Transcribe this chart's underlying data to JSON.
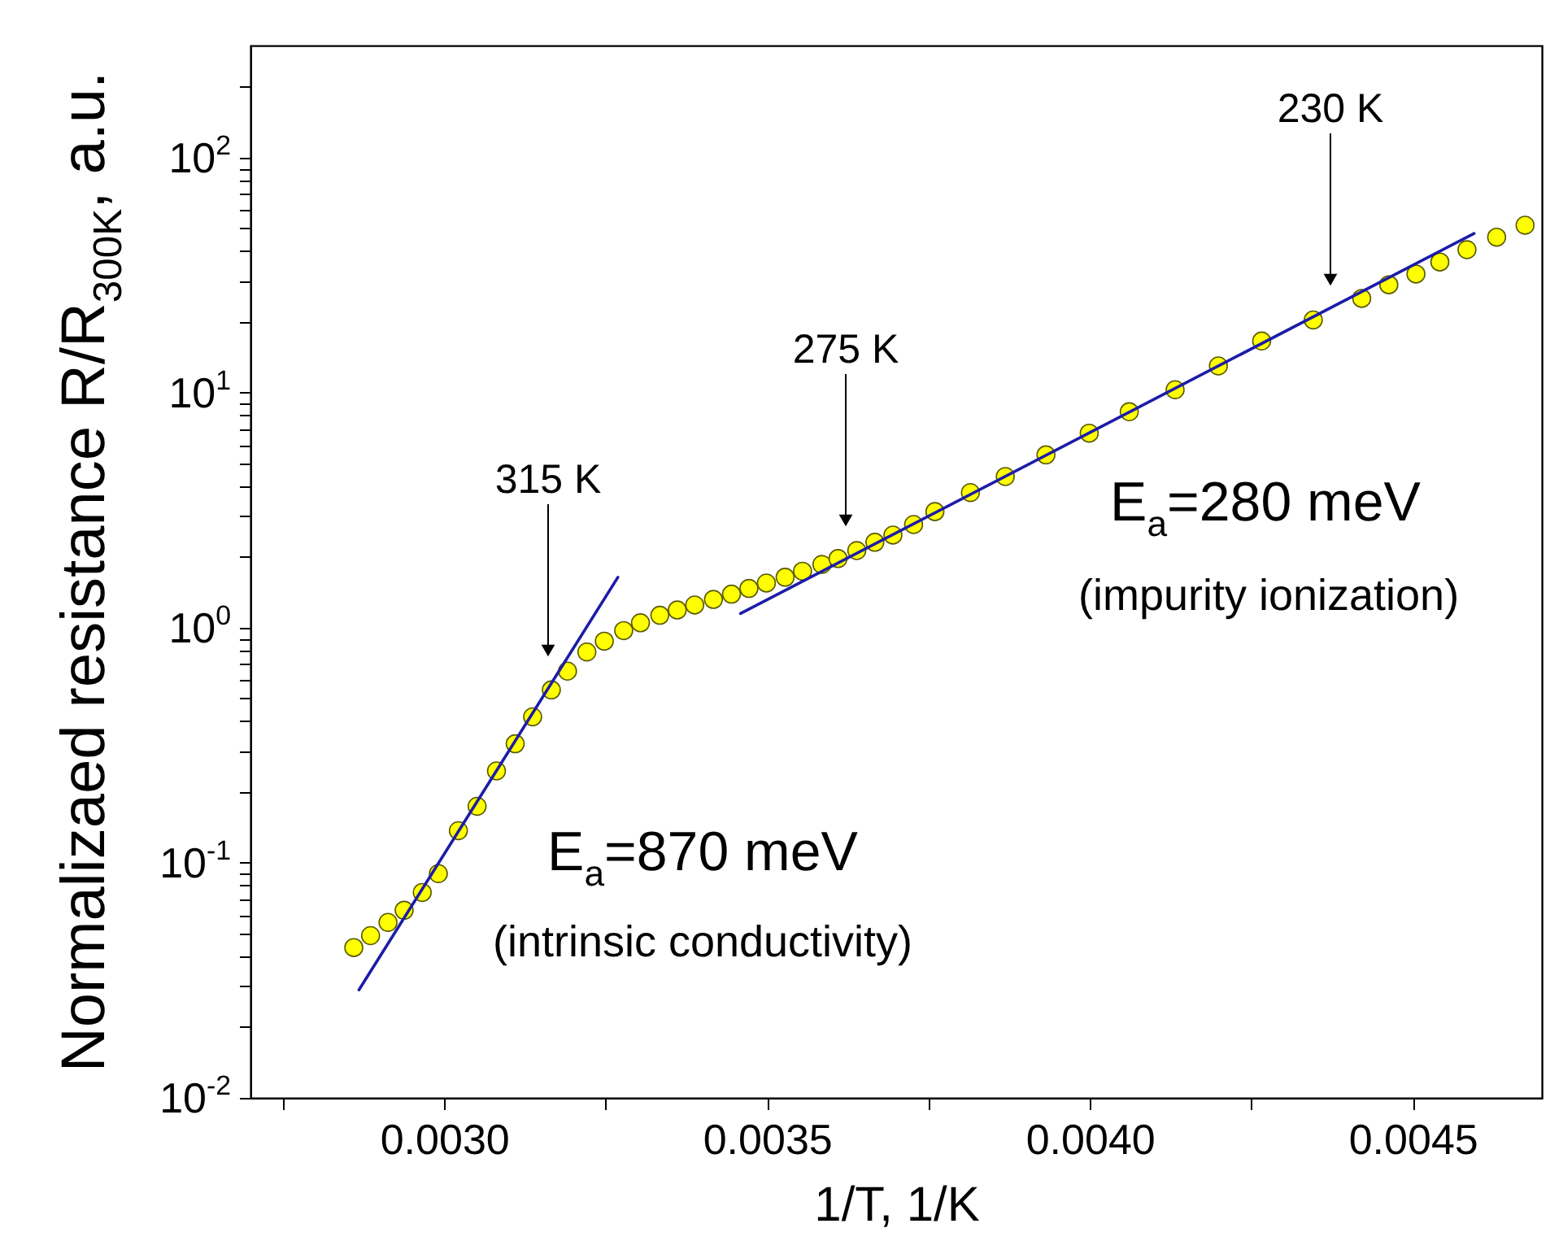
{
  "chart_data": {
    "type": "scatter",
    "xlabel": "1/T, 1/K",
    "ylabel": "Normalizaed resistance R/R$_{300K}$, a.u.",
    "xlim": [
      0.0027,
      0.0047
    ],
    "ylim": [
      0.01,
      300
    ],
    "log": "y",
    "grid": false,
    "xticks": [
      {
        "value": 0.00275,
        "label": null
      },
      {
        "value": 0.003,
        "label": "0.0030"
      },
      {
        "value": 0.00325,
        "label": null
      },
      {
        "value": 0.0035,
        "label": "0.0035"
      },
      {
        "value": 0.00375,
        "label": null
      },
      {
        "value": 0.004,
        "label": "0.0040"
      },
      {
        "value": 0.00425,
        "label": null
      },
      {
        "value": 0.0045,
        "label": "0.0045"
      }
    ],
    "yticks": [
      {
        "value": 0.01,
        "label": "10$^{-2}$"
      },
      {
        "value": 0.02,
        "label": null
      },
      {
        "value": 0.03,
        "label": null
      },
      {
        "value": 0.04,
        "label": null
      },
      {
        "value": 0.05,
        "label": null
      },
      {
        "value": 0.06,
        "label": null
      },
      {
        "value": 0.07,
        "label": null
      },
      {
        "value": 0.08,
        "label": null
      },
      {
        "value": 0.09,
        "label": null
      },
      {
        "value": 0.1,
        "label": "10$^{-1}$"
      },
      {
        "value": 0.2,
        "label": null
      },
      {
        "value": 0.3,
        "label": null
      },
      {
        "value": 0.4,
        "label": null
      },
      {
        "value": 0.5,
        "label": null
      },
      {
        "value": 0.6,
        "label": null
      },
      {
        "value": 0.7,
        "label": null
      },
      {
        "value": 0.8,
        "label": null
      },
      {
        "value": 0.9,
        "label": null
      },
      {
        "value": 1,
        "label": "10$^{0}$"
      },
      {
        "value": 2,
        "label": null
      },
      {
        "value": 3,
        "label": null
      },
      {
        "value": 4,
        "label": null
      },
      {
        "value": 5,
        "label": null
      },
      {
        "value": 6,
        "label": null
      },
      {
        "value": 7,
        "label": null
      },
      {
        "value": 8,
        "label": null
      },
      {
        "value": 9,
        "label": null
      },
      {
        "value": 10,
        "label": "10$^{1}$"
      },
      {
        "value": 20,
        "label": null
      },
      {
        "value": 30,
        "label": null
      },
      {
        "value": 40,
        "label": null
      },
      {
        "value": 50,
        "label": null
      },
      {
        "value": 60,
        "label": null
      },
      {
        "value": 70,
        "label": null
      },
      {
        "value": 80,
        "label": null
      },
      {
        "value": 90,
        "label": null
      },
      {
        "value": 100,
        "label": "10$^{2}$"
      },
      {
        "value": 200,
        "label": null
      }
    ],
    "series": [
      {
        "marker": "circle",
        "color": "#ffff00",
        "x": [
          0.00286,
          0.002886,
          0.002913,
          0.002938,
          0.002966,
          0.002991,
          0.003022,
          0.003051,
          0.003081,
          0.00311,
          0.003137,
          0.003166,
          0.003191,
          0.003221,
          0.003248,
          0.003278,
          0.003304,
          0.003334,
          0.003361,
          0.003388,
          0.003417,
          0.003445,
          0.003472,
          0.003499,
          0.003528,
          0.003555,
          0.003585,
          0.00361,
          0.003639,
          0.003667,
          0.003695,
          0.003727,
          0.00376,
          0.003815,
          0.003869,
          0.003932,
          0.003999,
          0.004061,
          0.004132,
          0.004199,
          0.004266,
          0.004346,
          0.004421,
          0.004463,
          0.004505,
          0.004542,
          0.004584,
          0.00463,
          0.004674
        ],
        "values": [
          0.0436,
          0.049,
          0.0558,
          0.0628,
          0.0748,
          0.09,
          0.137,
          0.174,
          0.246,
          0.321,
          0.418,
          0.544,
          0.654,
          0.789,
          0.877,
          0.973,
          1.05,
          1.13,
          1.19,
          1.25,
          1.32,
          1.39,
          1.47,
          1.55,
          1.64,
          1.74,
          1.86,
          1.97,
          2.13,
          2.31,
          2.48,
          2.75,
          3.12,
          3.76,
          4.4,
          5.44,
          6.73,
          8.3,
          10.3,
          13.0,
          16.6,
          20.4,
          25.2,
          28.8,
          32.0,
          36.0,
          40.6,
          45.9,
          51.6
        ]
      },
      {
        "type": "line",
        "color": "#1c1ca8",
        "x": [
          0.002868,
          0.003269
        ],
        "values": [
          0.0288,
          1.64
        ]
      },
      {
        "type": "line",
        "color": "#1c1ca8",
        "x": [
          0.003459,
          0.004595
        ],
        "values": [
          1.15,
          47.6
        ]
      }
    ],
    "annotations": [
      "315 K",
      "275 K",
      "230 K",
      "E$_{a}$=870 meV",
      "(intrinsic conductivity)",
      "E$_{a}$=280 meV",
      "(impurity ionization)"
    ]
  }
}
